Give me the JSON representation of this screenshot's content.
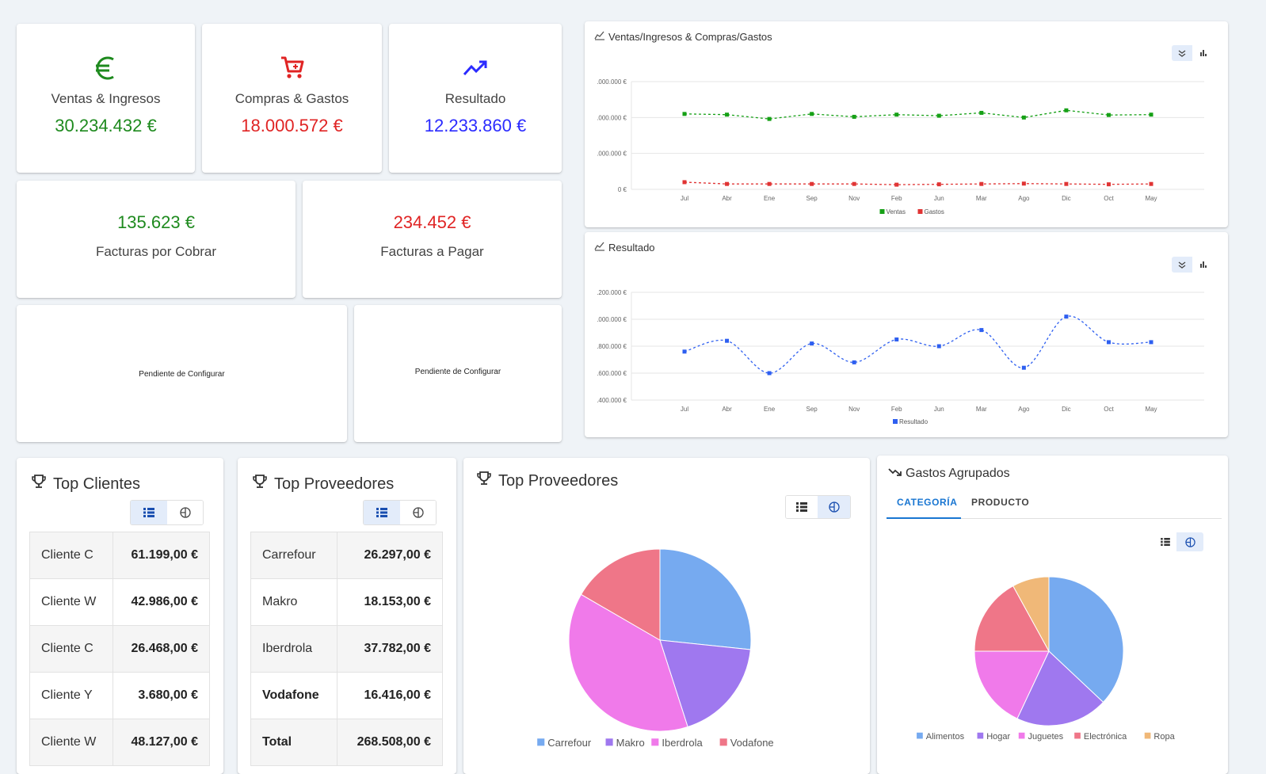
{
  "kpis": [
    {
      "label": "Ventas & Ingresos",
      "value": "30.234.432 €",
      "color": "#1e8a1e",
      "icon": "euro-icon"
    },
    {
      "label": "Compras & Gastos",
      "value": "18.000.572 €",
      "color": "#e02424",
      "icon": "cart-icon"
    },
    {
      "label": "Resultado",
      "value": "12.233.860 €",
      "color": "#2b2bff",
      "icon": "trending-up-icon"
    }
  ],
  "invoices": [
    {
      "value": "135.623 €",
      "label": "Facturas por Cobrar",
      "color": "#1e8a1e"
    },
    {
      "value": "234.452 €",
      "label": "Facturas a Pagar",
      "color": "#e02424"
    }
  ],
  "pending": [
    "Pendiente de Configurar",
    "Pendiente de Configurar"
  ],
  "chart_data": [
    {
      "type": "line",
      "title": "Ventas/Ingresos & Compras/Gastos",
      "categories": [
        "Jul",
        "Abr",
        "Ene",
        "Sep",
        "Nov",
        "Feb",
        "Jun",
        "Mar",
        "Ago",
        "Dic",
        "Oct",
        "May"
      ],
      "yticks": [
        ".000.000 €",
        ".000.000 €",
        ".000.000 €",
        "0 €"
      ],
      "ylim": [
        0,
        3000000
      ],
      "series": [
        {
          "name": "Ventas",
          "color": "#16a016",
          "values": [
            2100000,
            2080000,
            1960000,
            2100000,
            2020000,
            2080000,
            2050000,
            2130000,
            2000000,
            2200000,
            2070000,
            2080000
          ]
        },
        {
          "name": "Gastos",
          "color": "#e03434",
          "values": [
            200000,
            150000,
            150000,
            150000,
            150000,
            130000,
            140000,
            150000,
            160000,
            150000,
            140000,
            150000
          ]
        }
      ],
      "legend": "bottom"
    },
    {
      "type": "line",
      "title": "Resultado",
      "categories": [
        "Jul",
        "Abr",
        "Ene",
        "Sep",
        "Nov",
        "Feb",
        "Jun",
        "Mar",
        "Ago",
        "Dic",
        "Oct",
        "May"
      ],
      "yticks": [
        ".200.000 €",
        ".000.000 €",
        ".800.000 €",
        ".600.000 €",
        ".400.000 €"
      ],
      "ylim": [
        400000,
        1200000
      ],
      "series": [
        {
          "name": "Resultado",
          "color": "#2e5ff0",
          "values": [
            760000,
            840000,
            600000,
            820000,
            680000,
            850000,
            800000,
            920000,
            640000,
            1020000,
            830000,
            830000
          ]
        }
      ],
      "legend": "bottom"
    },
    {
      "type": "pie",
      "title": "Top Proveedores",
      "categories": [
        "Carrefour",
        "Makro",
        "Iberdrola",
        "Vodafone"
      ],
      "values": [
        26297,
        18153,
        37782,
        16416
      ],
      "colors": [
        "#76aaf0",
        "#9f78ef",
        "#f07aea",
        "#ef7688"
      ],
      "legend": "bottom"
    },
    {
      "type": "pie",
      "title": "Gastos Agrupados",
      "categories": [
        "Alimentos",
        "Hogar",
        "Juguetes",
        "Electrónica",
        "Ropa"
      ],
      "values": [
        37,
        20,
        18,
        17,
        8
      ],
      "colors": [
        "#76aaf0",
        "#9f78ef",
        "#f07aea",
        "#ef7688",
        "#f0b878"
      ],
      "legend": "bottom"
    }
  ],
  "top_clientes": {
    "title": "Top Clientes",
    "rows": [
      {
        "name": "Cliente C",
        "value": "61.199,00 €"
      },
      {
        "name": "Cliente W",
        "value": "42.986,00 €"
      },
      {
        "name": "Cliente C",
        "value": "26.468,00 €"
      },
      {
        "name": "Cliente Y",
        "value": "3.680,00 €"
      },
      {
        "name": "Cliente W",
        "value": "48.127,00 €"
      }
    ]
  },
  "top_proveedores": {
    "title": "Top Proveedores",
    "rows": [
      {
        "name": "Carrefour",
        "value": "26.297,00 €"
      },
      {
        "name": "Makro",
        "value": "18.153,00 €"
      },
      {
        "name": "Iberdrola",
        "value": "37.782,00 €"
      },
      {
        "name": "Vodafone",
        "value": "16.416,00 €"
      },
      {
        "name": "Total",
        "value": "268.508,00 €"
      }
    ]
  },
  "gastos": {
    "title": "Gastos Agrupados",
    "tabs": [
      "CATEGORÍA",
      "PRODUCTO"
    ]
  },
  "colors": {
    "accent": "#1976d2",
    "toggle_active": "#e3ecfa"
  }
}
